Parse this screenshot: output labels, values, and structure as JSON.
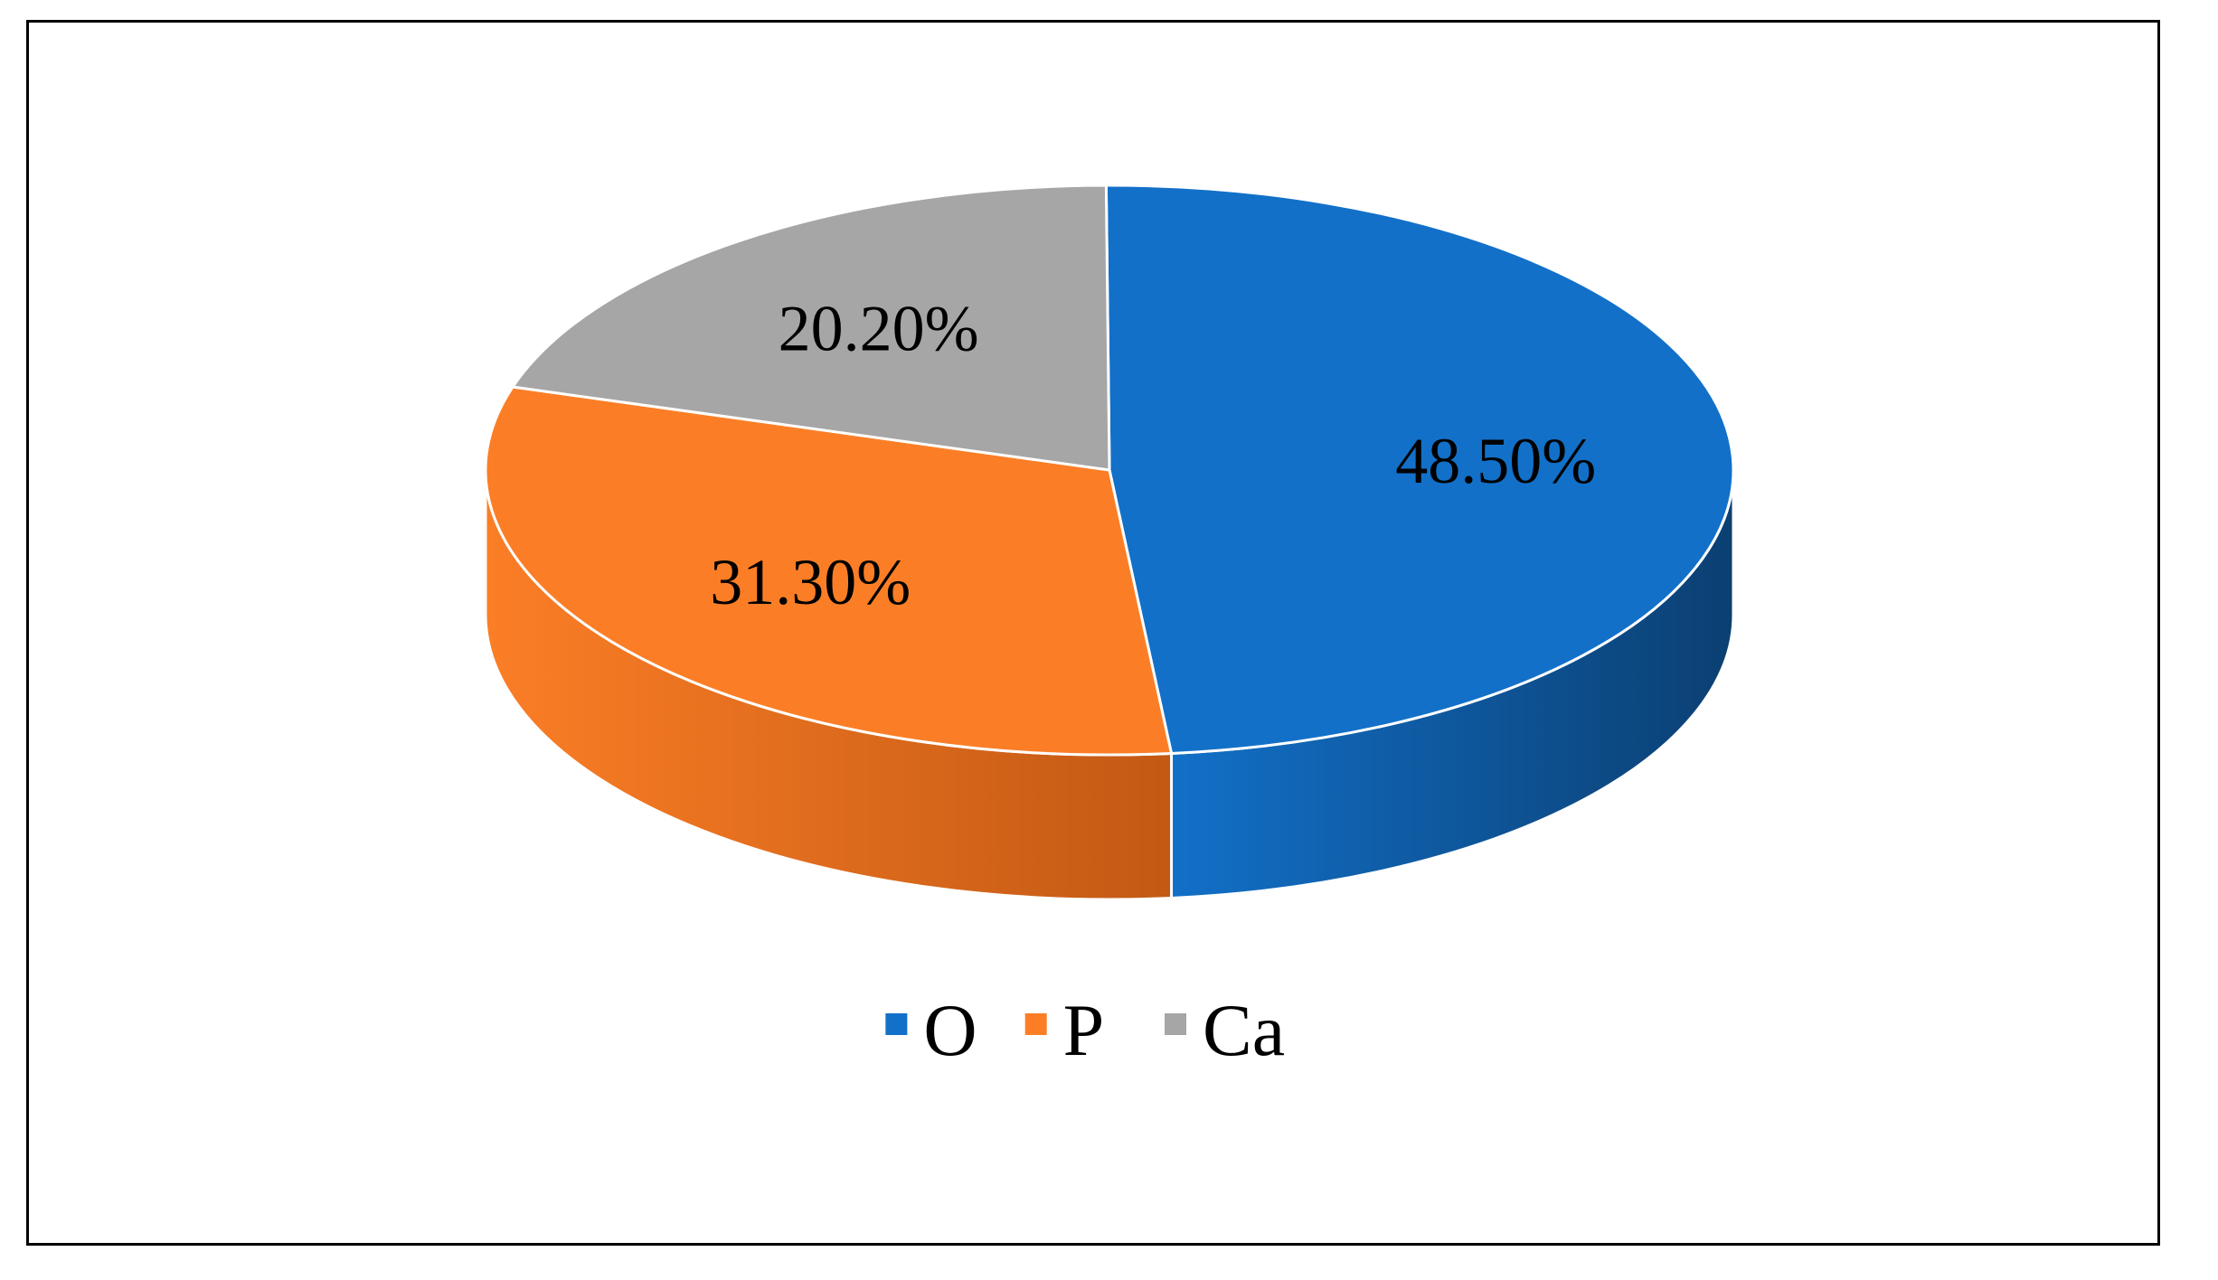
{
  "chart_data": {
    "type": "pie",
    "style": "3d",
    "categories": [
      "O",
      "P",
      "Ca"
    ],
    "values": [
      48.5,
      31.3,
      20.2
    ],
    "data_labels": [
      "48.50%",
      "31.30%",
      "20.20%"
    ],
    "colors": [
      "#1270C8",
      "#FB7E26",
      "#A6A6A6"
    ],
    "side_colors": [
      "#0B3F72",
      "#C25914",
      "#6E6E6E"
    ],
    "title": "",
    "legend": {
      "position": "bottom",
      "entries": [
        "O",
        "P",
        "Ca"
      ]
    }
  }
}
